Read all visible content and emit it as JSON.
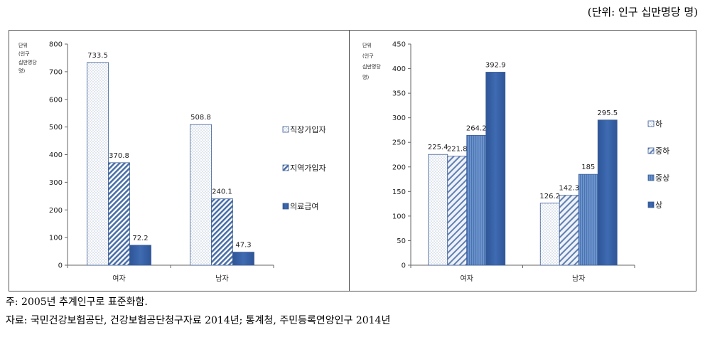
{
  "unit_note": "(단위: 인구 십만명당 명)",
  "notes": {
    "footnote": "주: 2005년 추계인구로 표준화함.",
    "source": "자료: 국민건강보험공단, 건강보험공단청구자료 2014년; 통계청, 주민등록연앙인구 2014년"
  },
  "chart_data": [
    {
      "type": "bar",
      "ylabel": [
        "단위",
        "(인구",
        "십만명당",
        "명)"
      ],
      "ylim": [
        0,
        800
      ],
      "yticks": [
        0,
        100,
        200,
        300,
        400,
        500,
        600,
        700,
        800
      ],
      "categories": [
        "여자",
        "남자"
      ],
      "series": [
        {
          "name": "직장가입자",
          "values": [
            733.5,
            508.8
          ],
          "labels": [
            "733.5",
            "508.8"
          ]
        },
        {
          "name": "지역가입자",
          "values": [
            370.8,
            240.1
          ],
          "labels": [
            "370.8",
            "240.1"
          ]
        },
        {
          "name": "의료급여",
          "values": [
            72.2,
            47.3
          ],
          "labels": [
            "72.2",
            "47.3"
          ]
        }
      ],
      "legend_position": "right"
    },
    {
      "type": "bar",
      "ylabel": [
        "단위",
        "(인구",
        "십만명당",
        "명)"
      ],
      "ylim": [
        0,
        450
      ],
      "yticks": [
        0,
        50,
        100,
        150,
        200,
        250,
        300,
        350,
        400,
        450
      ],
      "categories": [
        "여자",
        "남자"
      ],
      "series": [
        {
          "name": "하",
          "values": [
            225.4,
            126.2
          ],
          "labels": [
            "225.4",
            "126.2"
          ]
        },
        {
          "name": "중하",
          "values": [
            221.8,
            142.3
          ],
          "labels": [
            "221.8",
            "142.3"
          ]
        },
        {
          "name": "중상",
          "values": [
            264.2,
            185
          ],
          "labels": [
            "264.2",
            "185"
          ]
        },
        {
          "name": "상",
          "values": [
            392.9,
            295.5
          ],
          "labels": [
            "392.9",
            "295.5"
          ]
        }
      ],
      "legend_position": "right"
    }
  ]
}
